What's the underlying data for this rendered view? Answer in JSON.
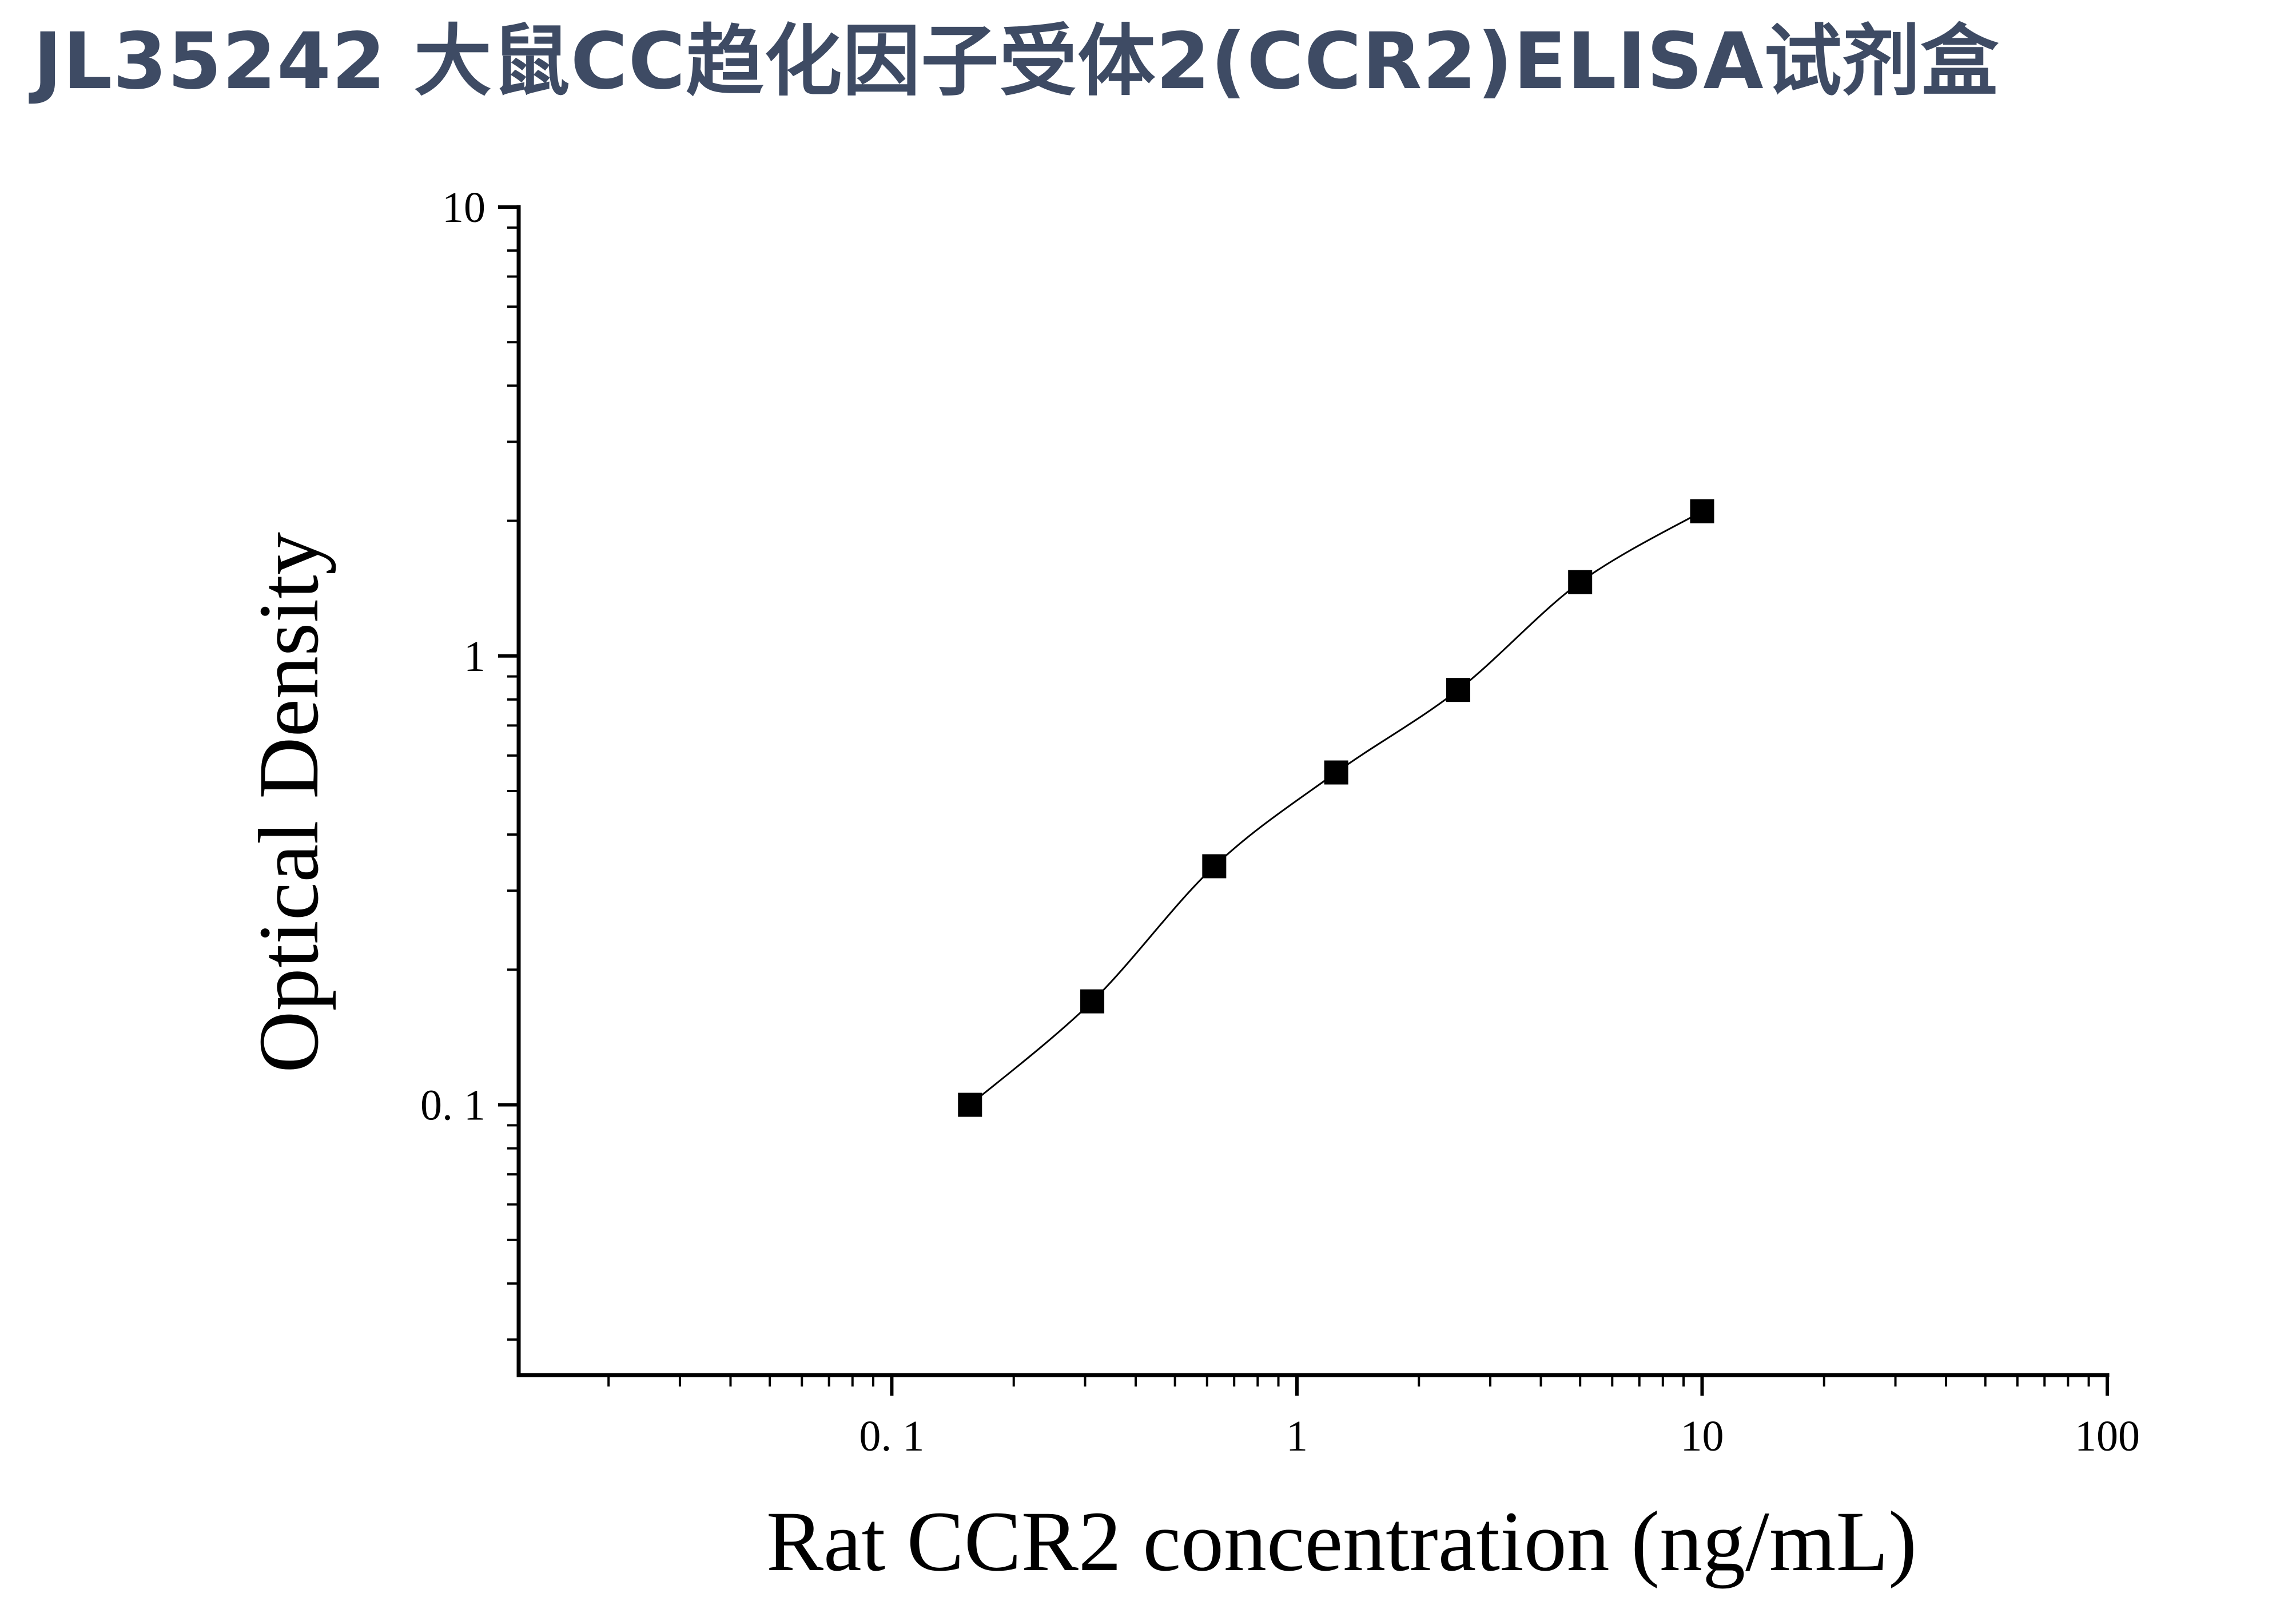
{
  "page": {
    "title": "JL35242 大鼠CC趋化因子受体2(CCR2)ELISA试剂盒"
  },
  "chart_data": {
    "type": "scatter",
    "title": "JL35242 大鼠CC趋化因子受体2(CCR2)ELISA试剂盒",
    "xlabel": "Rat CCR2 concentration (ng/mL)",
    "ylabel": "Optical Density",
    "x_scale": "log",
    "y_scale": "log",
    "xlim": [
      0.012,
      100
    ],
    "ylim": [
      0.025,
      10
    ],
    "x_ticks": [
      {
        "value": 0.1,
        "label": "0. 1"
      },
      {
        "value": 1,
        "label": "1"
      },
      {
        "value": 10,
        "label": "10"
      },
      {
        "value": 100,
        "label": "100"
      }
    ],
    "y_ticks": [
      {
        "value": 0.1,
        "label": "0. 1"
      },
      {
        "value": 1,
        "label": "1"
      },
      {
        "value": 10,
        "label": "10"
      }
    ],
    "grid": false,
    "legend": "none",
    "series": [
      {
        "marker": "square",
        "color": "#000000",
        "fit_line": true,
        "x": [
          0.156,
          0.3125,
          0.625,
          1.25,
          2.5,
          5,
          10
        ],
        "y": [
          0.1,
          0.17,
          0.34,
          0.55,
          0.84,
          1.46,
          2.1
        ]
      }
    ]
  }
}
